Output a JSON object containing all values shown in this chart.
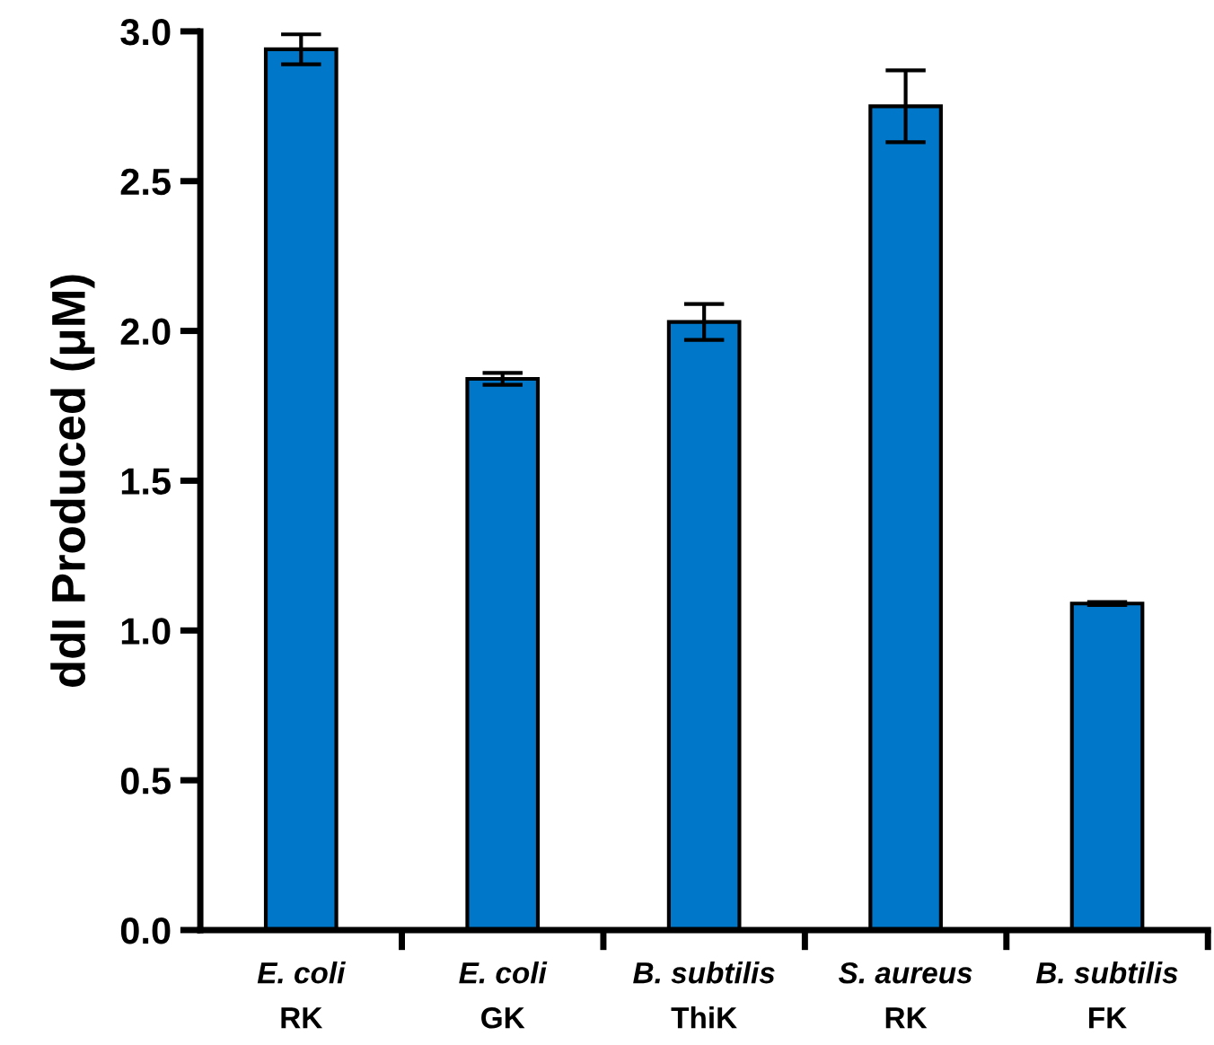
{
  "chart_data": {
    "type": "bar",
    "ylabel": "ddI Produced (μM)",
    "categories": [
      "E. coli\nRK",
      "E. coli\nGK",
      "B. subtilis\nThiK",
      "S. aureus\nRK",
      "B. subtilis\nFK"
    ],
    "values": [
      2.94,
      1.84,
      2.03,
      2.75,
      1.09
    ],
    "errors": [
      0.05,
      0.02,
      0.06,
      0.12,
      0.005
    ],
    "color": "#0077c8",
    "ylim": [
      0,
      3.0
    ],
    "yticks": [
      {
        "value": 0,
        "label": "0.0"
      },
      {
        "value": 0.5,
        "label": "0.5"
      },
      {
        "value": 1,
        "label": "1.0"
      },
      {
        "value": 1.5,
        "label": "1.5"
      },
      {
        "value": 2,
        "label": "2.0"
      },
      {
        "value": 2.5,
        "label": "2.5"
      },
      {
        "value": 3,
        "label": "3.0"
      }
    ],
    "grid": false,
    "legend": false
  }
}
